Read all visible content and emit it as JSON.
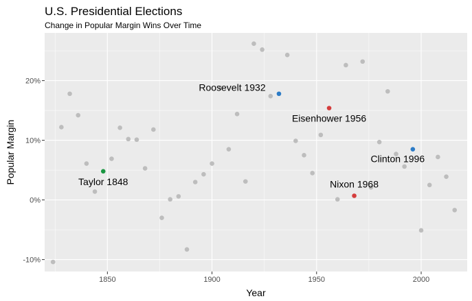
{
  "chart_data": {
    "type": "scatter",
    "title": "U.S. Presidential Elections",
    "subtitle": "Change in Popular Margin Wins Over Time",
    "xlabel": "Year",
    "ylabel": "Popular Margin",
    "xlim": [
      1820,
      2022
    ],
    "ylim": [
      -12,
      28
    ],
    "x_ticks": [
      1850,
      1900,
      1950,
      2000
    ],
    "x_tick_labels": [
      "1850",
      "1900",
      "1950",
      "2000"
    ],
    "y_ticks": [
      -10,
      0,
      10,
      20
    ],
    "y_tick_labels": [
      "-10%",
      "0%",
      "10%",
      "20%"
    ],
    "grid": true,
    "points": [
      {
        "x": 1824,
        "y": -10.4
      },
      {
        "x": 1828,
        "y": 12.2
      },
      {
        "x": 1832,
        "y": 17.8
      },
      {
        "x": 1836,
        "y": 14.2
      },
      {
        "x": 1840,
        "y": 6.1
      },
      {
        "x": 1844,
        "y": 1.4
      },
      {
        "x": 1852,
        "y": 6.9
      },
      {
        "x": 1856,
        "y": 12.1
      },
      {
        "x": 1860,
        "y": 10.2
      },
      {
        "x": 1864,
        "y": 10.1
      },
      {
        "x": 1868,
        "y": 5.3
      },
      {
        "x": 1872,
        "y": 11.8
      },
      {
        "x": 1876,
        "y": -3.0
      },
      {
        "x": 1880,
        "y": 0.1
      },
      {
        "x": 1884,
        "y": 0.6
      },
      {
        "x": 1888,
        "y": -8.3
      },
      {
        "x": 1892,
        "y": 3.0
      },
      {
        "x": 1896,
        "y": 4.3
      },
      {
        "x": 1900,
        "y": 6.1
      },
      {
        "x": 1904,
        "y": 18.8
      },
      {
        "x": 1908,
        "y": 8.5
      },
      {
        "x": 1912,
        "y": 14.4
      },
      {
        "x": 1916,
        "y": 3.1
      },
      {
        "x": 1920,
        "y": 26.2
      },
      {
        "x": 1924,
        "y": 25.2
      },
      {
        "x": 1928,
        "y": 17.4
      },
      {
        "x": 1936,
        "y": 24.3
      },
      {
        "x": 1940,
        "y": 9.9
      },
      {
        "x": 1944,
        "y": 7.5
      },
      {
        "x": 1948,
        "y": 4.5
      },
      {
        "x": 1952,
        "y": 10.9
      },
      {
        "x": 1960,
        "y": 0.1
      },
      {
        "x": 1964,
        "y": 22.6
      },
      {
        "x": 1972,
        "y": 23.2
      },
      {
        "x": 1976,
        "y": 2.1
      },
      {
        "x": 1980,
        "y": 9.7
      },
      {
        "x": 1984,
        "y": 18.2
      },
      {
        "x": 1988,
        "y": 7.7
      },
      {
        "x": 1992,
        "y": 5.6
      },
      {
        "x": 2000,
        "y": -5.1
      },
      {
        "x": 2004,
        "y": 2.5
      },
      {
        "x": 2008,
        "y": 7.2
      },
      {
        "x": 2012,
        "y": 3.9
      },
      {
        "x": 2016,
        "y": -1.7
      }
    ],
    "highlighted": [
      {
        "x": 1848,
        "y": 4.8,
        "label": "Taylor 1848",
        "color": "#1a9641",
        "label_pos": "below"
      },
      {
        "x": 1932,
        "y": 17.8,
        "label": "Roosevelt 1932",
        "color": "#2c7bc6",
        "label_pos": "above-left"
      },
      {
        "x": 1956,
        "y": 15.4,
        "label": "Eisenhower 1956",
        "color": "#d43d3d",
        "label_pos": "below"
      },
      {
        "x": 1968,
        "y": 0.7,
        "label": "Nixon 1968",
        "color": "#d43d3d",
        "label_pos": "above"
      },
      {
        "x": 1996,
        "y": 8.5,
        "label": "Clinton 1996",
        "color": "#2c7bc6",
        "label_pos": "below-left"
      }
    ],
    "colors": {
      "panel_background": "#ebebeb",
      "grid_major": "#ffffff",
      "point_default": "#bdbdbd"
    }
  }
}
